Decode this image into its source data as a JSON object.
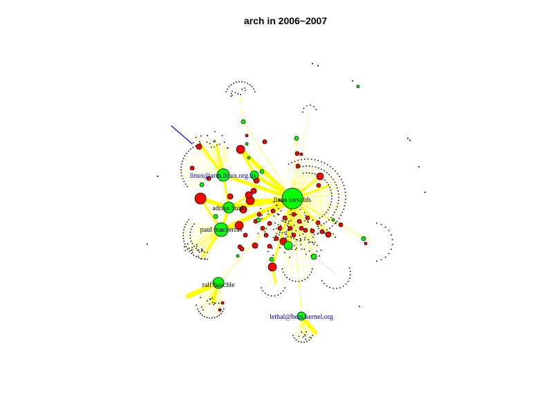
{
  "title": "arch in 2006~2007",
  "colors": {
    "edge": "#ffff00",
    "edge_special": "#0000ff",
    "edge_faint": "#9999dd",
    "node_green": "#00ff00",
    "node_red": "#ff0000",
    "node_small": "#000000",
    "label_dark": "#000000",
    "label_blue": "#000080"
  },
  "labels": {
    "linus": "linus torvalds",
    "rmk": "linux@arm.linux.org.uk",
    "adrian": "adrian bunk",
    "paulus": "paul mackerras",
    "ralf": "ralf baechle",
    "lethal": "lethal@hera.kernel.org"
  }
}
